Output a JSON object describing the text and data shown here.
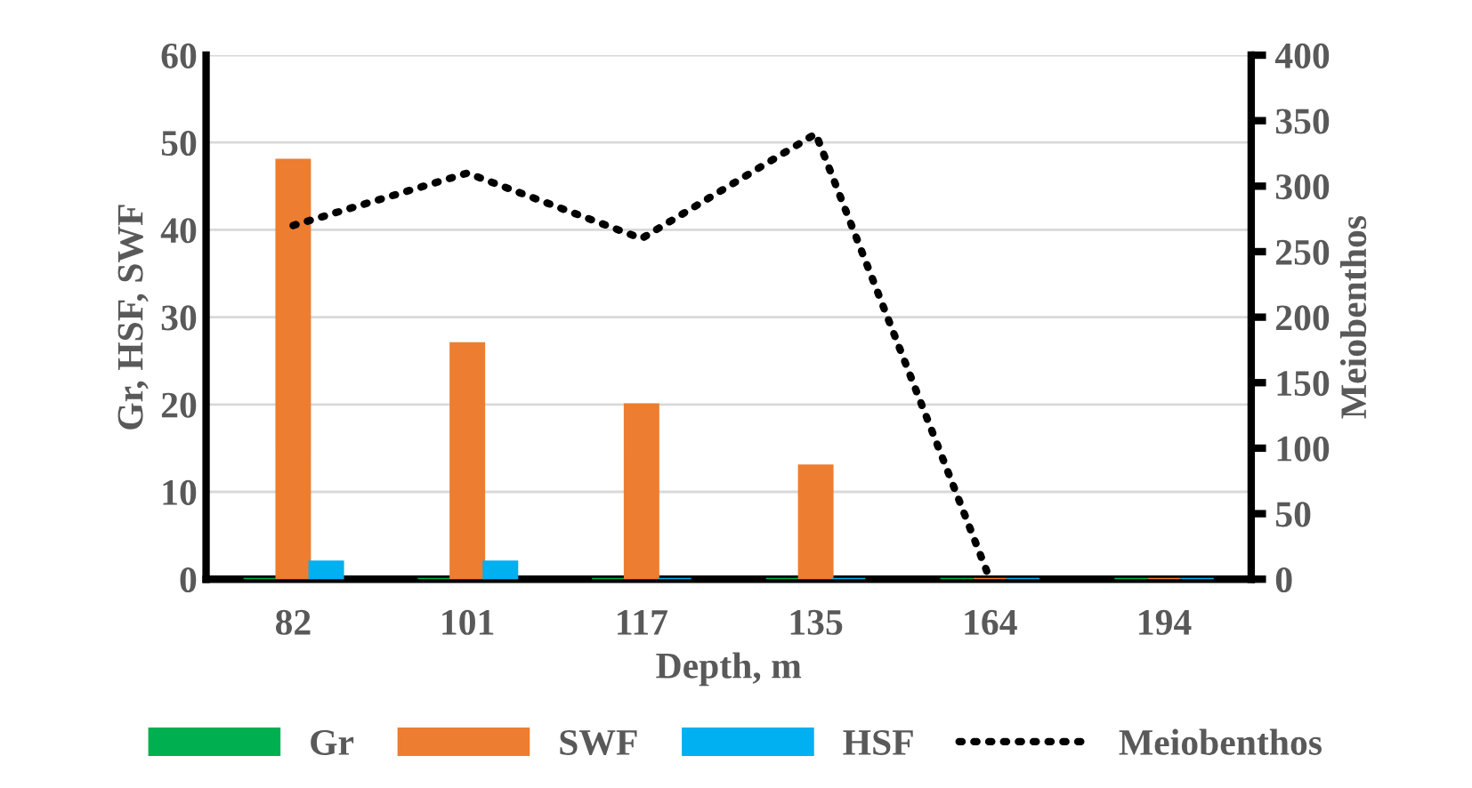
{
  "chart_data": {
    "type": "bar",
    "xlabel": "Depth, m",
    "ylabel": "Gr, HSF, SWF",
    "y2label": "Meiobenthos",
    "categories": [
      "82",
      "101",
      "117",
      "135",
      "164",
      "194"
    ],
    "series": [
      {
        "name": "Gr",
        "color": "#00b050",
        "values": [
          0,
          0,
          0,
          0,
          0,
          0
        ]
      },
      {
        "name": "SWF",
        "color": "#ed7d31",
        "values": [
          48,
          27,
          20,
          13,
          0,
          0
        ]
      },
      {
        "name": "HSF",
        "color": "#00b0f0",
        "values": [
          2,
          2,
          0,
          0,
          0,
          0
        ]
      },
      {
        "name": "Meiobenthos",
        "type": "line",
        "axis": "y2",
        "color": "#000000",
        "line_style": "dotted",
        "values": [
          270,
          310,
          260,
          340,
          0,
          null
        ]
      }
    ],
    "ylim": [
      0,
      60
    ],
    "yticks": [
      0,
      10,
      20,
      30,
      40,
      50,
      60
    ],
    "y2lim": [
      0,
      400
    ],
    "y2ticks": [
      0,
      50,
      100,
      150,
      200,
      250,
      300,
      350,
      400
    ],
    "grid": "y",
    "legend": "bottom"
  }
}
